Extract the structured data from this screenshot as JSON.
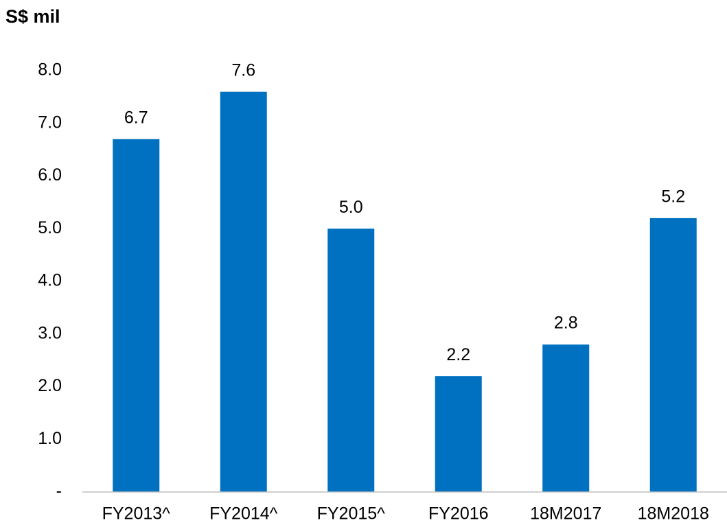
{
  "chart_data": {
    "type": "bar",
    "ylabel": "S$ mil",
    "categories": [
      "FY2013^",
      "FY2014^",
      "FY2015^",
      "FY2016",
      "18M2017",
      "18M2018"
    ],
    "values": [
      6.7,
      7.6,
      5.0,
      2.2,
      2.8,
      5.2
    ],
    "value_labels": [
      "6.7",
      "7.6",
      "5.0",
      "2.2",
      "2.8",
      "5.2"
    ],
    "color": "#0070c0",
    "ylim": [
      0,
      8
    ],
    "yticks": [
      {
        "value": 0,
        "label": "-"
      },
      {
        "value": 1,
        "label": "1.0"
      },
      {
        "value": 2,
        "label": "2.0"
      },
      {
        "value": 3,
        "label": "3.0"
      },
      {
        "value": 4,
        "label": "4.0"
      },
      {
        "value": 5,
        "label": "5.0"
      },
      {
        "value": 6,
        "label": "6.0"
      },
      {
        "value": 7,
        "label": "7.0"
      },
      {
        "value": 8,
        "label": "8.0"
      }
    ],
    "grid": false
  }
}
